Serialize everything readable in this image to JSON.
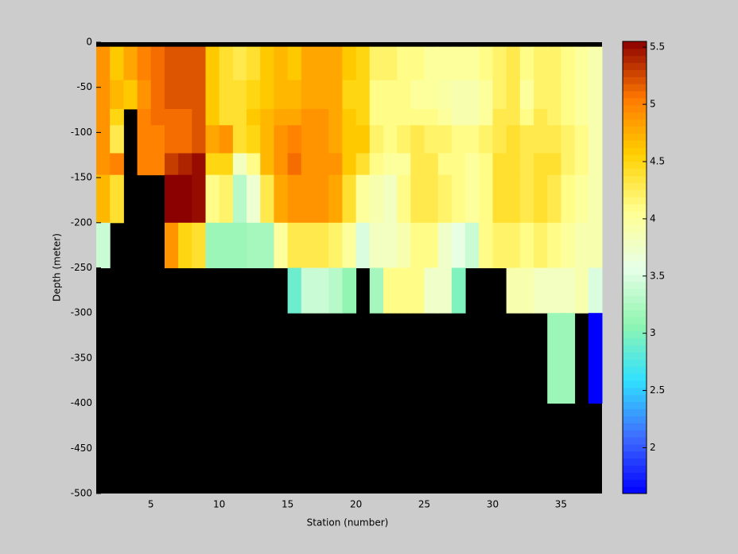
{
  "chart_data": {
    "type": "heatmap",
    "xlabel": "Station (number)",
    "ylabel": "Depth (meter)",
    "xlim": [
      1,
      38
    ],
    "ylim": [
      -500,
      0
    ],
    "xticks": [
      5,
      10,
      15,
      20,
      25,
      30,
      35
    ],
    "yticks": [
      0,
      -50,
      -100,
      -150,
      -200,
      -250,
      -300,
      -350,
      -400,
      -450,
      -500
    ],
    "x_edges": [
      1,
      2,
      3,
      4,
      5,
      6,
      7,
      8,
      9,
      10,
      11,
      12,
      13,
      14,
      15,
      16,
      17,
      18,
      19,
      20,
      21,
      22,
      23,
      24,
      25,
      26,
      27,
      28,
      29,
      30,
      31,
      32,
      33,
      34,
      35,
      36,
      37,
      38
    ],
    "y_edges": [
      0,
      -5,
      -42,
      -74,
      -92,
      -123,
      -147,
      -200,
      -250,
      -300,
      -400,
      -500
    ],
    "values": [
      [
        null,
        null,
        null,
        null,
        null,
        null,
        null,
        null,
        null,
        null,
        null,
        null,
        null,
        null,
        null,
        null,
        null,
        null,
        null,
        null,
        null,
        null,
        null,
        null,
        null,
        null,
        null,
        null,
        null,
        null,
        null,
        null,
        null,
        null,
        null,
        null,
        null
      ],
      [
        4.9,
        4.6,
        4.8,
        5.0,
        5.1,
        5.2,
        5.2,
        5.2,
        4.6,
        4.4,
        4.3,
        4.4,
        4.6,
        4.7,
        4.6,
        4.8,
        4.8,
        4.8,
        4.6,
        4.5,
        4.2,
        4.2,
        4.1,
        4.1,
        4.0,
        4.0,
        4.0,
        4.0,
        4.1,
        4.2,
        4.3,
        4.1,
        4.2,
        4.2,
        4.1,
        4.0,
        3.9
      ],
      [
        4.9,
        4.7,
        4.6,
        4.9,
        5.1,
        5.2,
        5.2,
        5.2,
        4.6,
        4.4,
        4.4,
        4.5,
        4.6,
        4.7,
        4.7,
        4.8,
        4.8,
        4.8,
        4.5,
        4.5,
        4.1,
        4.1,
        4.1,
        4.0,
        4.0,
        3.95,
        3.9,
        3.9,
        4.0,
        4.2,
        4.3,
        4.0,
        4.2,
        4.2,
        4.1,
        4.0,
        3.9
      ],
      [
        4.9,
        4.5,
        null,
        5.0,
        5.1,
        5.1,
        5.1,
        5.2,
        4.6,
        4.4,
        4.4,
        4.6,
        4.7,
        4.8,
        4.8,
        4.9,
        4.9,
        4.8,
        4.6,
        4.5,
        4.1,
        4.1,
        4.1,
        4.1,
        4.1,
        4.0,
        3.9,
        3.9,
        4.0,
        4.3,
        4.3,
        4.1,
        4.3,
        4.2,
        4.1,
        4.0,
        3.9
      ],
      [
        4.9,
        4.3,
        null,
        5.0,
        5.0,
        5.1,
        5.1,
        5.2,
        4.8,
        4.9,
        4.4,
        4.5,
        4.7,
        4.9,
        5.0,
        4.9,
        4.9,
        4.8,
        4.6,
        4.6,
        4.2,
        4.1,
        4.2,
        4.3,
        4.2,
        4.2,
        4.1,
        4.1,
        4.2,
        4.3,
        4.4,
        4.3,
        4.3,
        4.3,
        4.2,
        4.1,
        3.9
      ],
      [
        4.9,
        5.0,
        null,
        5.0,
        5.0,
        5.3,
        5.4,
        5.5,
        4.5,
        4.5,
        3.8,
        4.1,
        4.7,
        4.9,
        5.1,
        4.9,
        4.9,
        4.9,
        4.6,
        4.4,
        4.1,
        4.0,
        4.0,
        4.3,
        4.3,
        4.1,
        4.1,
        4.0,
        4.1,
        4.4,
        4.4,
        4.3,
        4.4,
        4.4,
        4.2,
        4.1,
        3.9
      ],
      [
        4.7,
        4.4,
        null,
        null,
        null,
        5.55,
        5.55,
        5.5,
        4.1,
        4.2,
        3.3,
        3.7,
        4.3,
        4.8,
        4.9,
        4.9,
        4.9,
        4.8,
        4.4,
        4.0,
        3.9,
        3.8,
        4.1,
        4.3,
        4.3,
        4.2,
        4.1,
        4.0,
        4.1,
        4.4,
        4.4,
        4.3,
        4.4,
        4.3,
        4.1,
        4.0,
        3.9
      ],
      [
        3.4,
        null,
        null,
        null,
        null,
        4.9,
        4.5,
        4.4,
        3.15,
        3.15,
        3.15,
        3.2,
        3.2,
        4.0,
        4.3,
        4.3,
        4.3,
        4.2,
        4.0,
        3.5,
        3.8,
        3.8,
        3.9,
        4.1,
        4.1,
        3.75,
        3.6,
        3.4,
        4.1,
        4.2,
        4.2,
        4.1,
        4.2,
        4.1,
        4.0,
        3.9,
        3.9
      ],
      [
        null,
        null,
        null,
        null,
        null,
        null,
        null,
        null,
        null,
        null,
        null,
        null,
        null,
        null,
        2.9,
        3.4,
        3.4,
        3.3,
        3.1,
        null,
        3.2,
        4.1,
        4.1,
        4.1,
        3.75,
        3.75,
        3.0,
        null,
        null,
        null,
        3.9,
        3.9,
        3.8,
        3.8,
        3.8,
        3.9,
        3.5
      ],
      [
        null,
        null,
        null,
        null,
        null,
        null,
        null,
        null,
        null,
        null,
        null,
        null,
        null,
        null,
        null,
        null,
        null,
        null,
        null,
        null,
        null,
        null,
        null,
        null,
        null,
        null,
        null,
        null,
        null,
        null,
        null,
        null,
        null,
        3.15,
        3.15,
        null,
        1.6
      ],
      [
        null,
        null,
        null,
        null,
        null,
        null,
        null,
        null,
        null,
        null,
        null,
        null,
        null,
        null,
        null,
        null,
        null,
        null,
        null,
        null,
        null,
        null,
        null,
        null,
        null,
        null,
        null,
        null,
        null,
        null,
        null,
        null,
        null,
        null,
        null,
        null,
        null
      ]
    ],
    "missing_color": "#000000",
    "colormap": [
      "#0000ff",
      "#3f6cff",
      "#30e0ff",
      "#90f5b0",
      "#e8ffe8",
      "#ffff90",
      "#ffd000",
      "#ff7800",
      "#8b0000"
    ],
    "clim": [
      1.6,
      5.55
    ],
    "colorbar_ticks": [
      2,
      2.5,
      3,
      3.5,
      4,
      4.5,
      5,
      5.5
    ]
  }
}
